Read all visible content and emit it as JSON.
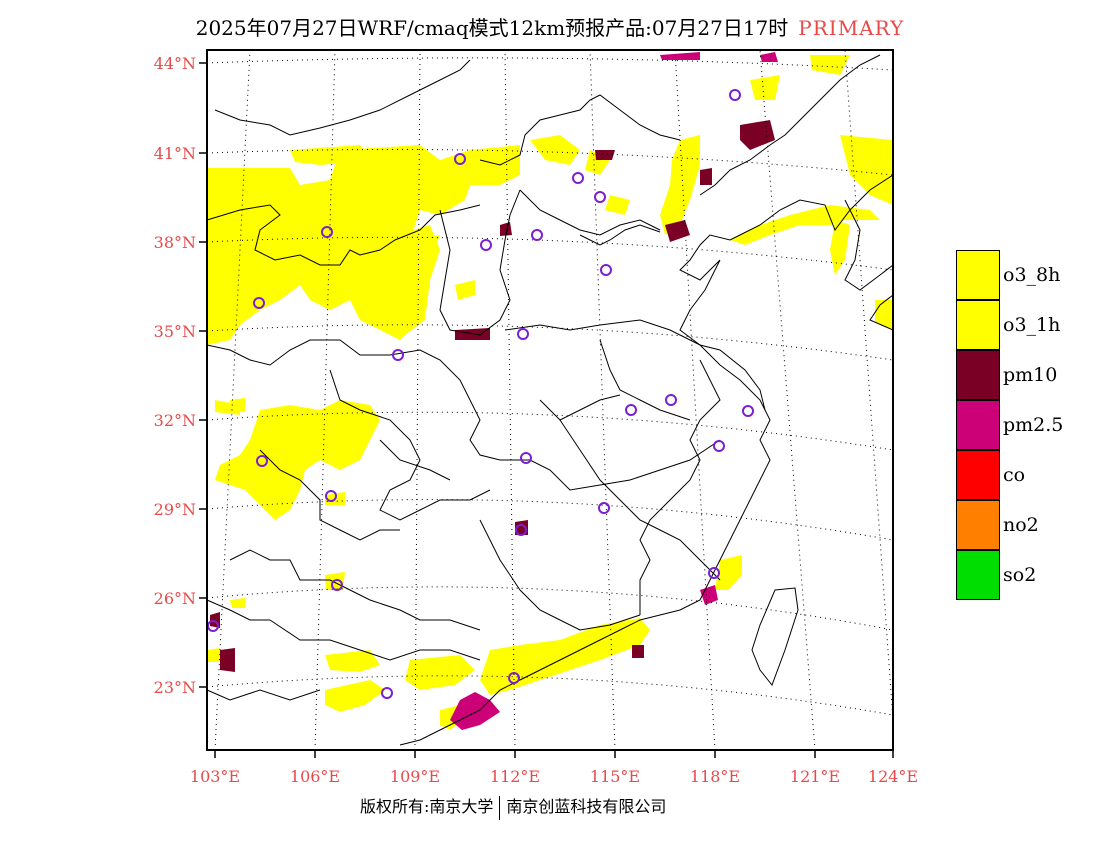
{
  "title": {
    "main": "2025年07月27日WRF/cmaq模式12km预报产品:07月27日17时",
    "tag": "PRIMARY"
  },
  "latitude_labels": [
    "44°N",
    "41°N",
    "38°N",
    "35°N",
    "32°N",
    "29°N",
    "26°N",
    "23°N"
  ],
  "longitude_labels": [
    "103°E",
    "106°E",
    "109°E",
    "112°E",
    "115°E",
    "118°E",
    "121°E",
    "124°E"
  ],
  "legend": [
    {
      "label": "o3_8h",
      "color": "#ffff00"
    },
    {
      "label": "o3_1h",
      "color": "#ffff00"
    },
    {
      "label": "pm10",
      "color": "#7b0026"
    },
    {
      "label": "pm2.5",
      "color": "#cc0077"
    },
    {
      "label": "co",
      "color": "#ff0000"
    },
    {
      "label": "no2",
      "color": "#ff7f00"
    },
    {
      "label": "so2",
      "color": "#00dd00"
    }
  ],
  "footer": {
    "left": "版权所有:南京大学",
    "right": "南京创蓝科技有限公司"
  }
}
